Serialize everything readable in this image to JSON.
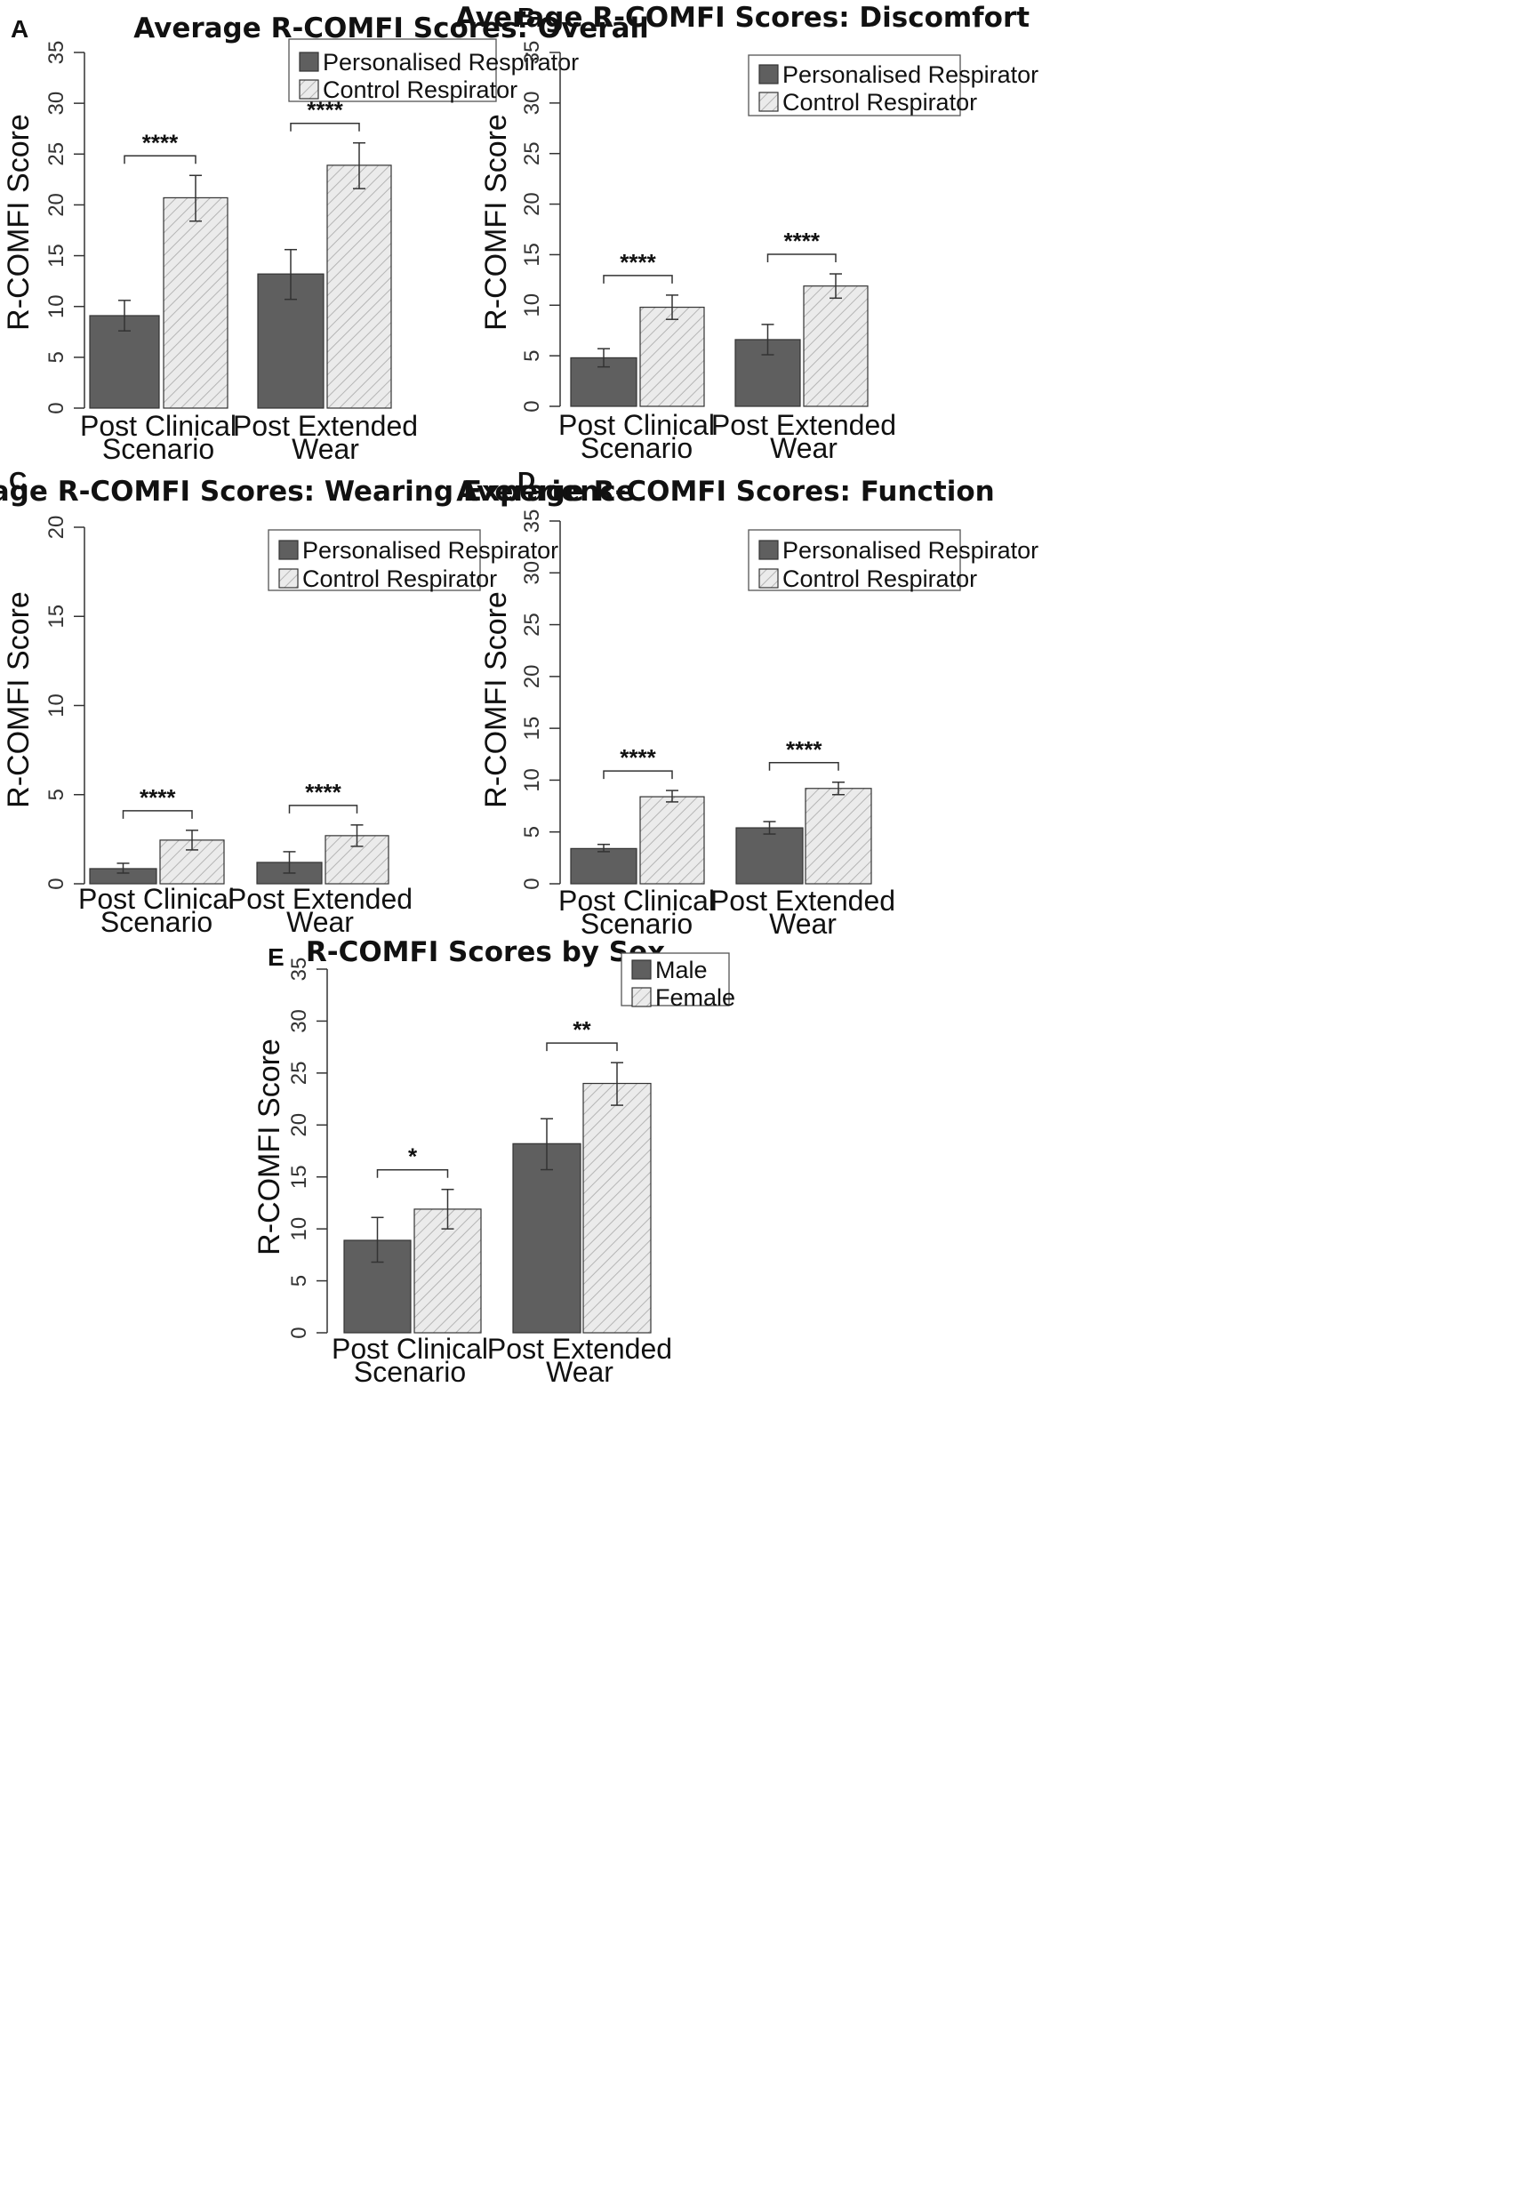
{
  "colors": {
    "dark_bar": "#5f5f5f",
    "light_bar": "#e9e9e9",
    "hatch": "#bdbdbd",
    "axis": "#333333"
  },
  "chart_data": [
    {
      "panel": "A",
      "type": "bar",
      "title": "Average R-COMFI Scores: Overall",
      "ylabel": "R-COMFI Score",
      "xlabel": "",
      "ylim": [
        0,
        35
      ],
      "yticks": [
        0,
        5,
        10,
        15,
        20,
        25,
        30,
        35
      ],
      "categories": [
        [
          "Post Clinical",
          "Scenario"
        ],
        [
          "Post Extended",
          "Wear"
        ]
      ],
      "series": [
        {
          "name": "Personalised Respirator",
          "pattern": "solid",
          "values": [
            9.1,
            13.2
          ],
          "err_low": [
            7.6,
            10.7
          ],
          "err_high": [
            10.6,
            15.6
          ]
        },
        {
          "name": "Control Respirator",
          "pattern": "hatch",
          "values": [
            20.7,
            23.9
          ],
          "err_low": [
            18.4,
            21.6
          ],
          "err_high": [
            22.9,
            26.1
          ]
        }
      ],
      "significance": [
        "****",
        "****"
      ],
      "legend": "top-right"
    },
    {
      "panel": "B",
      "type": "bar",
      "title": "Average R-COMFI Scores: Discomfort",
      "ylabel": "R-COMFI Score",
      "xlabel": "",
      "ylim": [
        0,
        35
      ],
      "yticks": [
        0,
        5,
        10,
        15,
        20,
        25,
        30,
        35
      ],
      "categories": [
        [
          "Post Clinical",
          "Scenario"
        ],
        [
          "Post Extended",
          "Wear"
        ]
      ],
      "series": [
        {
          "name": "Personalised Respirator",
          "pattern": "solid",
          "values": [
            4.8,
            6.6
          ],
          "err_low": [
            3.9,
            5.1
          ],
          "err_high": [
            5.7,
            8.1
          ]
        },
        {
          "name": "Control Respirator",
          "pattern": "hatch",
          "values": [
            9.8,
            11.9
          ],
          "err_low": [
            8.6,
            10.7
          ],
          "err_high": [
            11.0,
            13.1
          ]
        }
      ],
      "significance": [
        "****",
        "****"
      ],
      "legend": "top-right"
    },
    {
      "panel": "C",
      "type": "bar",
      "title": "Average R-COMFI Scores: Wearing Experience",
      "ylabel": "R-COMFI Score",
      "xlabel": "",
      "ylim": [
        0,
        20
      ],
      "yticks": [
        0,
        5,
        10,
        15,
        20
      ],
      "categories": [
        [
          "Post Clinical",
          "Scenario"
        ],
        [
          "Post Extended",
          "Wear"
        ]
      ],
      "series": [
        {
          "name": "Personalised Respirator",
          "pattern": "solid",
          "values": [
            0.85,
            1.2
          ],
          "err_low": [
            0.6,
            0.6
          ],
          "err_high": [
            1.15,
            1.8
          ]
        },
        {
          "name": "Control Respirator",
          "pattern": "hatch",
          "values": [
            2.45,
            2.7
          ],
          "err_low": [
            1.9,
            2.1
          ],
          "err_high": [
            3.0,
            3.3
          ]
        }
      ],
      "significance": [
        "****",
        "****"
      ],
      "legend": "top-right"
    },
    {
      "panel": "D",
      "type": "bar",
      "title": "Average R-COMFI Scores: Function",
      "ylabel": "R-COMFI Score",
      "xlabel": "",
      "ylim": [
        0,
        35
      ],
      "yticks": [
        0,
        5,
        10,
        15,
        20,
        25,
        30,
        35
      ],
      "categories": [
        [
          "Post Clinical",
          "Scenario"
        ],
        [
          "Post Extended",
          "Wear"
        ]
      ],
      "series": [
        {
          "name": "Personalised Respirator",
          "pattern": "solid",
          "values": [
            3.4,
            5.4
          ],
          "err_low": [
            3.1,
            4.8
          ],
          "err_high": [
            3.8,
            6.0
          ]
        },
        {
          "name": "Control Respirator",
          "pattern": "hatch",
          "values": [
            8.4,
            9.2
          ],
          "err_low": [
            7.9,
            8.6
          ],
          "err_high": [
            9.0,
            9.8
          ]
        }
      ],
      "significance": [
        "****",
        "****"
      ],
      "legend": "top-right"
    },
    {
      "panel": "E",
      "type": "bar",
      "title": "R-COMFI Scores by Sex",
      "ylabel": "R-COMFI Score",
      "xlabel": "",
      "ylim": [
        0,
        35
      ],
      "yticks": [
        0,
        5,
        10,
        15,
        20,
        25,
        30,
        35
      ],
      "categories": [
        [
          "Post Clinical",
          "Scenario"
        ],
        [
          "Post Extended",
          "Wear"
        ]
      ],
      "series": [
        {
          "name": "Male",
          "pattern": "solid",
          "values": [
            8.9,
            18.2
          ],
          "err_low": [
            6.8,
            15.7
          ],
          "err_high": [
            11.1,
            20.6
          ]
        },
        {
          "name": "Female",
          "pattern": "hatch",
          "values": [
            11.9,
            24.0
          ],
          "err_low": [
            10.0,
            21.9
          ],
          "err_high": [
            13.8,
            26.0
          ]
        }
      ],
      "significance": [
        "*",
        "**"
      ],
      "legend": "top-right"
    }
  ]
}
